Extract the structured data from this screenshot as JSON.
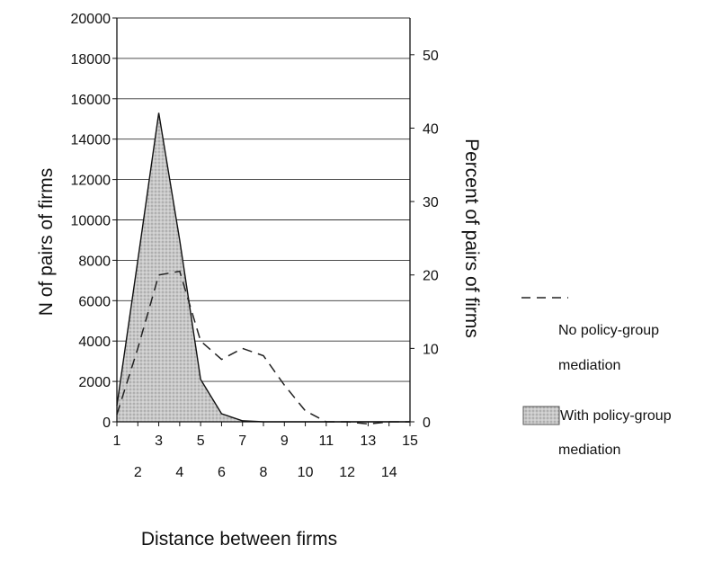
{
  "chart_data": {
    "type": "area",
    "x": [
      1,
      2,
      3,
      4,
      5,
      6,
      7,
      8,
      9,
      10,
      11,
      12,
      13,
      14,
      15
    ],
    "x_ticks_top": [
      "1",
      "3",
      "5",
      "7",
      "9",
      "11",
      "13",
      "15"
    ],
    "x_ticks_bottom": [
      "2",
      "4",
      "6",
      "8",
      "10",
      "12",
      "14"
    ],
    "xlabel": "Distance between firms",
    "ylabel": "N of pairs of firms",
    "ylim": [
      0,
      20000
    ],
    "y_ticks": [
      "0",
      "2000",
      "4000",
      "6000",
      "8000",
      "10000",
      "12000",
      "14000",
      "16000",
      "18000",
      "20000"
    ],
    "y2label": "Percent of pairs of firms",
    "y2lim": [
      0,
      55
    ],
    "y2_ticks": [
      "0",
      "10",
      "20",
      "30",
      "40",
      "50"
    ],
    "grid": true,
    "legend_position": "right",
    "series": [
      {
        "name": "With policy-group mediation",
        "kind": "area",
        "axis": "left",
        "values": [
          800,
          8000,
          15300,
          9000,
          2100,
          400,
          50,
          0,
          0,
          0,
          0,
          0,
          0,
          0,
          0
        ],
        "fill": "#cfcfcf"
      },
      {
        "name": "No policy-group mediation",
        "kind": "line",
        "dash": "dashed",
        "axis": "right",
        "values": [
          1,
          10,
          20,
          20.5,
          11,
          8.5,
          10,
          9,
          5,
          1.5,
          0,
          0,
          -0.3,
          0,
          0
        ]
      }
    ]
  },
  "legend": {
    "no_mediation_line1": "No policy-group",
    "no_mediation_line2": "mediation",
    "with_mediation_line1": "With policy-group",
    "with_mediation_line2": "mediation"
  }
}
